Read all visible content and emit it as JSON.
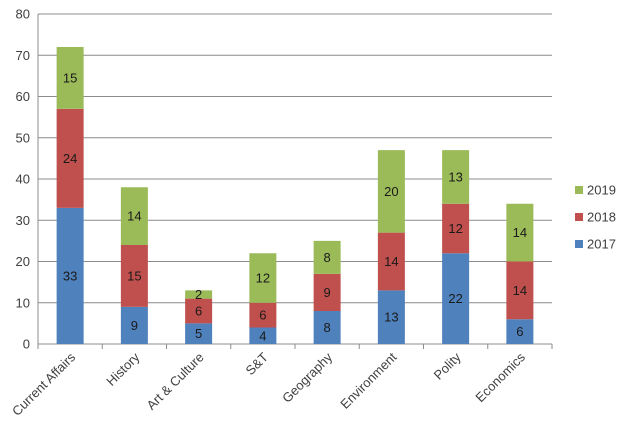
{
  "chart_data": {
    "type": "bar",
    "stacked": true,
    "categories": [
      "Current Affairs",
      "History",
      "Art & Culture",
      "S&T",
      "Geography",
      "Environment",
      "Polity",
      "Economics"
    ],
    "series": [
      {
        "name": "2017",
        "values": [
          33,
          9,
          5,
          4,
          8,
          13,
          22,
          6
        ],
        "color": "#4f81bd"
      },
      {
        "name": "2018",
        "values": [
          24,
          15,
          6,
          6,
          9,
          14,
          12,
          14
        ],
        "color": "#c0504d"
      },
      {
        "name": "2019",
        "values": [
          15,
          14,
          2,
          12,
          8,
          20,
          13,
          14
        ],
        "color": "#9bbb59"
      }
    ],
    "data_labels": [
      [
        "33",
        "9",
        "5",
        "4",
        "8",
        "13",
        "22",
        "6"
      ],
      [
        "24",
        "15",
        "6",
        "6",
        "9",
        "14",
        "12",
        "14"
      ],
      [
        "15",
        "14",
        "2",
        "12",
        "8",
        "20",
        "13",
        "14"
      ]
    ],
    "ylim": [
      0,
      80
    ],
    "yticks": [
      0,
      10,
      20,
      30,
      40,
      50,
      60,
      70,
      80
    ],
    "grid": true,
    "legend": "right",
    "title": "",
    "xlabel": "",
    "ylabel": ""
  }
}
